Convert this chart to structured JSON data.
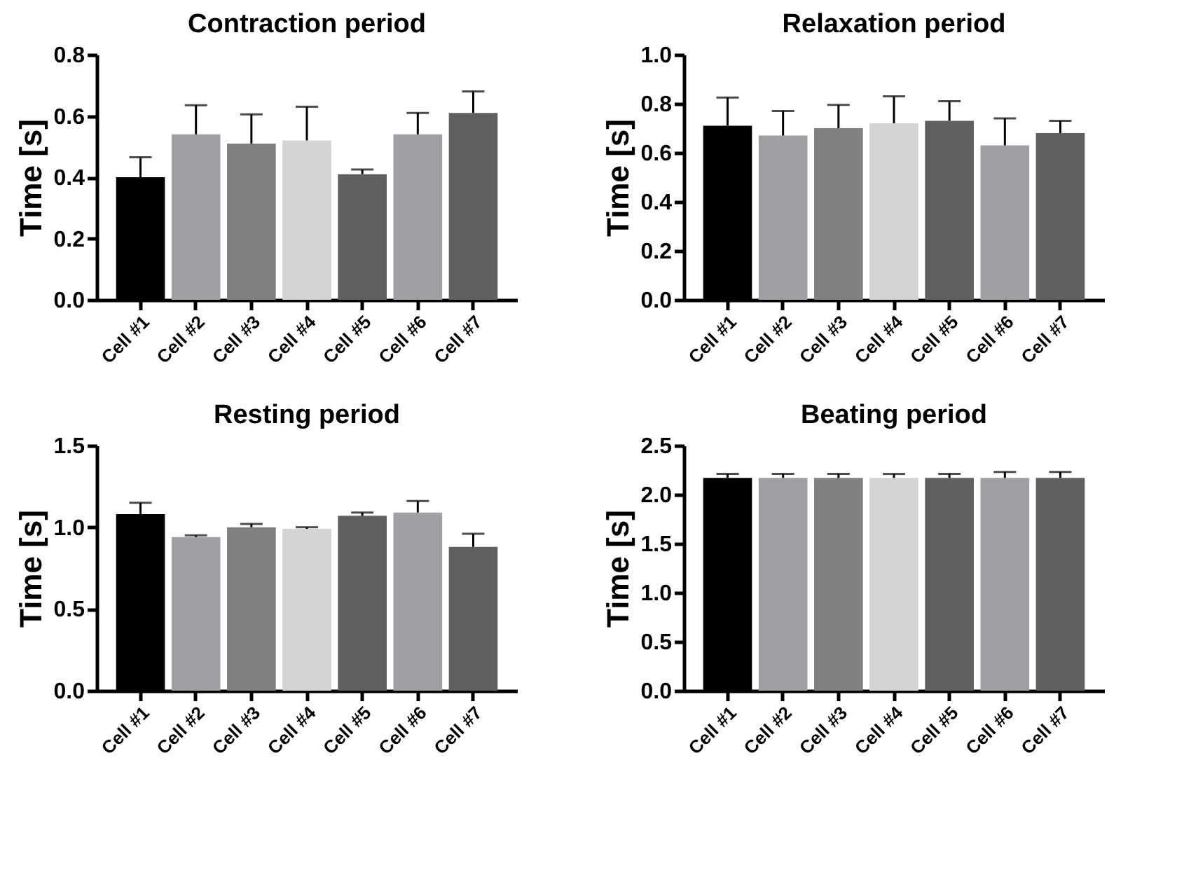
{
  "chart_data": [
    {
      "type": "bar",
      "title": "Contraction period",
      "ylabel": "Time [s]",
      "categories": [
        "Cell #1",
        "Cell #2",
        "Cell #3",
        "Cell #4",
        "Cell #5",
        "Cell #6",
        "Cell #7"
      ],
      "values": [
        0.4,
        0.54,
        0.51,
        0.52,
        0.41,
        0.54,
        0.61
      ],
      "colors": [
        "#000000",
        "#a0a0a4",
        "#808080",
        "#d4d4d4",
        "#606060",
        "#a0a0a4",
        "#606060"
      ],
      "errors": [
        [
          0.4,
          0.465
        ],
        [
          0.54,
          0.635
        ],
        [
          0.51,
          0.605
        ],
        [
          0.52,
          0.63
        ],
        [
          0.41,
          0.425
        ],
        [
          0.54,
          0.61
        ],
        [
          0.61,
          0.68
        ]
      ],
      "ylim": [
        0,
        0.8
      ],
      "yticks": [
        {
          "value": 0,
          "label": "0.0"
        },
        0.2,
        0.4,
        0.6,
        0.8
      ],
      "grid": false
    },
    {
      "type": "bar",
      "title": "Relaxation period",
      "ylabel": "Time [s]",
      "categories": [
        "Cell #1",
        "Cell #2",
        "Cell #3",
        "Cell #4",
        "Cell #5",
        "Cell #6",
        "Cell #7"
      ],
      "values": [
        0.71,
        0.67,
        0.7,
        0.72,
        0.73,
        0.63,
        0.68
      ],
      "colors": [
        "#000000",
        "#a0a0a4",
        "#808080",
        "#d4d4d4",
        "#606060",
        "#a0a0a4",
        "#606060"
      ],
      "errors": [
        [
          0.71,
          0.825
        ],
        [
          0.67,
          0.77
        ],
        [
          0.7,
          0.795
        ],
        [
          0.72,
          0.83
        ],
        [
          0.73,
          0.81
        ],
        [
          0.63,
          0.74
        ],
        [
          0.68,
          0.73
        ]
      ],
      "ylim": [
        0,
        1.0
      ],
      "yticks": [
        {
          "value": 0,
          "label": "0.0"
        },
        0.2,
        0.4,
        0.6,
        0.8,
        {
          "value": 1,
          "label": "1.0"
        }
      ],
      "grid": false
    },
    {
      "type": "bar",
      "title": "Resting period",
      "ylabel": "Time [s]",
      "categories": [
        "Cell #1",
        "Cell #2",
        "Cell #3",
        "Cell #4",
        "Cell #5",
        "Cell #6",
        "Cell #7"
      ],
      "values": [
        1.08,
        0.94,
        1.0,
        0.99,
        1.07,
        1.09,
        0.88
      ],
      "colors": [
        "#000000",
        "#a0a0a4",
        "#808080",
        "#d4d4d4",
        "#606060",
        "#a0a0a4",
        "#606060"
      ],
      "errors": [
        [
          1.08,
          1.15
        ],
        [
          0.94,
          0.95
        ],
        [
          1.0,
          1.02
        ],
        [
          0.99,
          1.0
        ],
        [
          1.07,
          1.09
        ],
        [
          1.09,
          1.16
        ],
        [
          0.88,
          0.96
        ]
      ],
      "ylim": [
        0,
        1.5
      ],
      "yticks": [
        {
          "value": 0,
          "label": "0.0"
        },
        0.5,
        {
          "value": 1,
          "label": "1.0"
        },
        1.5
      ],
      "grid": false
    },
    {
      "type": "bar",
      "title": "Beating period",
      "ylabel": "Time [s]",
      "categories": [
        "Cell #1",
        "Cell #2",
        "Cell #3",
        "Cell #4",
        "Cell #5",
        "Cell #6",
        "Cell #7"
      ],
      "values": [
        2.17,
        2.17,
        2.17,
        2.17,
        2.17,
        2.17,
        2.17
      ],
      "colors": [
        "#000000",
        "#a0a0a4",
        "#808080",
        "#d4d4d4",
        "#606060",
        "#a0a0a4",
        "#606060"
      ],
      "errors": [
        [
          2.17,
          2.21
        ],
        [
          2.17,
          2.21
        ],
        [
          2.17,
          2.21
        ],
        [
          2.17,
          2.21
        ],
        [
          2.17,
          2.21
        ],
        [
          2.17,
          2.23
        ],
        [
          2.17,
          2.23
        ]
      ],
      "ylim": [
        0,
        2.5
      ],
      "yticks": [
        {
          "value": 0,
          "label": "0.0"
        },
        0.5,
        {
          "value": 1,
          "label": "1.0"
        },
        1.5,
        {
          "value": 2,
          "label": "2.0"
        },
        2.5
      ],
      "grid": false
    }
  ]
}
